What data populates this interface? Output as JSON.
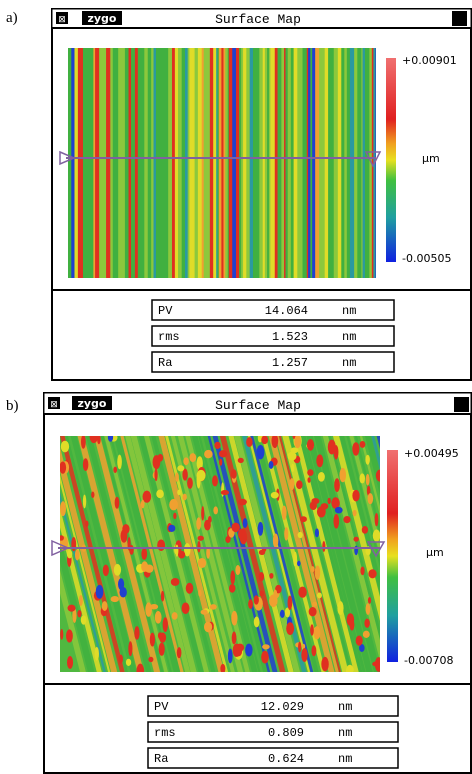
{
  "panels": [
    {
      "label": "a)",
      "window": {
        "logo": "zygo",
        "title": "Surface Map"
      },
      "colorbar": {
        "max": "+0.00901",
        "unit": "µm",
        "min": "-0.00505"
      },
      "table": {
        "rows": [
          [
            "PV",
            "14.064",
            "nm"
          ],
          [
            "rms",
            "1.523",
            "nm"
          ],
          [
            "Ra",
            "1.257",
            "nm"
          ]
        ]
      }
    },
    {
      "label": "b)",
      "window": {
        "logo": "zygo",
        "title": "Surface Map"
      },
      "colorbar": {
        "max": "+0.00495",
        "unit": "µm",
        "min": "-0.00708"
      },
      "table": {
        "rows": [
          [
            "PV",
            "12.029",
            "nm"
          ],
          [
            "rms",
            "0.809",
            "nm"
          ],
          [
            "Ra",
            "0.624",
            "nm"
          ]
        ]
      }
    }
  ]
}
